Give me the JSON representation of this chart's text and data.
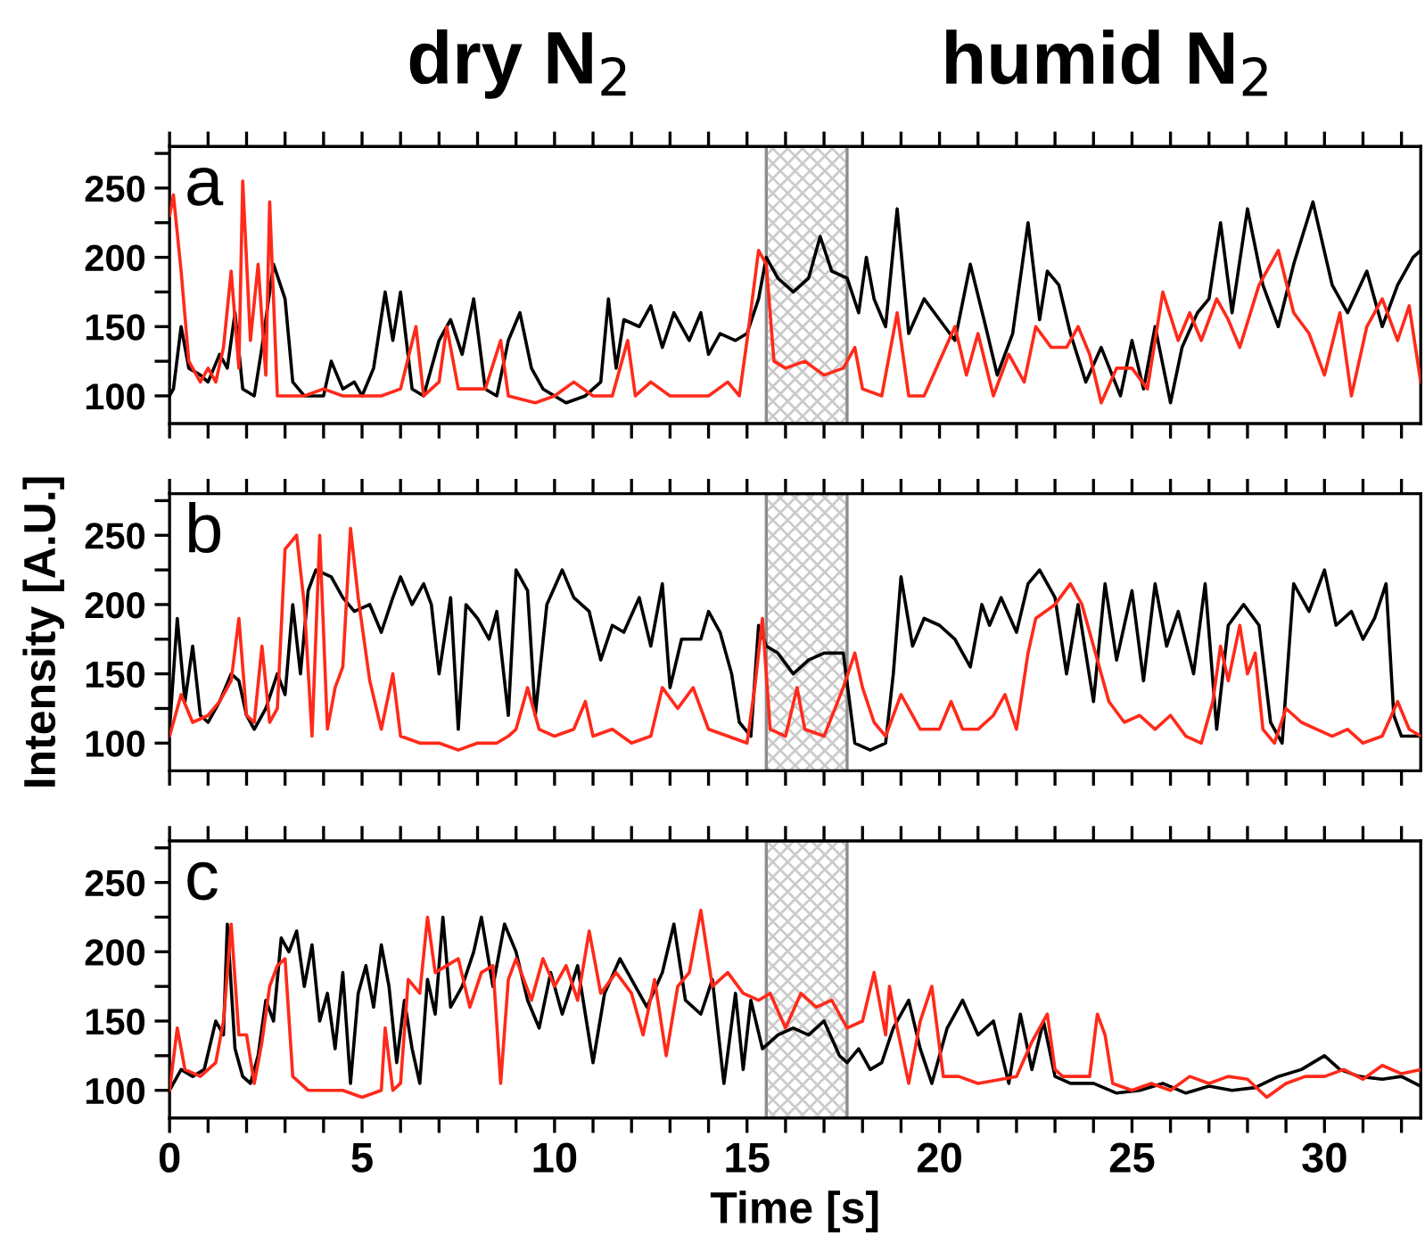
{
  "chart_data": [
    {
      "type": "line",
      "annotations": [
        "a",
        "dry N$_{2}$",
        "humid N$_{2}$"
      ],
      "tick_labels": "y",
      "xlim": [
        0,
        32.5
      ],
      "ylim": [
        80,
        280
      ],
      "xticks": [
        {
          "value": 0,
          "label": null
        },
        {
          "value": 1,
          "label": null
        },
        {
          "value": 2,
          "label": null
        },
        {
          "value": 3,
          "label": null
        },
        {
          "value": 4,
          "label": null
        },
        {
          "value": 5,
          "label": null
        },
        {
          "value": 6,
          "label": null
        },
        {
          "value": 7,
          "label": null
        },
        {
          "value": 8,
          "label": null
        },
        {
          "value": 9,
          "label": null
        },
        {
          "value": 10,
          "label": null
        },
        {
          "value": 11,
          "label": null
        },
        {
          "value": 12,
          "label": null
        },
        {
          "value": 13,
          "label": null
        },
        {
          "value": 14,
          "label": null
        },
        {
          "value": 15,
          "label": null
        },
        {
          "value": 16,
          "label": null
        },
        {
          "value": 17,
          "label": null
        },
        {
          "value": 18,
          "label": null
        },
        {
          "value": 19,
          "label": null
        },
        {
          "value": 20,
          "label": null
        },
        {
          "value": 21,
          "label": null
        },
        {
          "value": 22,
          "label": null
        },
        {
          "value": 23,
          "label": null
        },
        {
          "value": 24,
          "label": null
        },
        {
          "value": 25,
          "label": null
        },
        {
          "value": 26,
          "label": null
        },
        {
          "value": 27,
          "label": null
        },
        {
          "value": 28,
          "label": null
        },
        {
          "value": 29,
          "label": null
        },
        {
          "value": 30,
          "label": null
        },
        {
          "value": 31,
          "label": null
        },
        {
          "value": 32,
          "label": null
        }
      ],
      "yticks": [
        100,
        {
          "value": 125,
          "label": null
        },
        150,
        {
          "value": 175,
          "label": null
        },
        200,
        {
          "value": 225,
          "label": null
        },
        250,
        {
          "value": 275,
          "label": null
        }
      ],
      "bands": [
        {
          "axis": "x",
          "from": 15.5,
          "to": 17.6,
          "color": "#000000"
        }
      ],
      "series": [
        {
          "color": "#000000",
          "x": [
            0,
            0.1,
            0.3,
            0.5,
            0.8,
            1.0,
            1.3,
            1.5,
            1.7,
            1.9,
            2.2,
            2.4,
            2.7,
            3.0,
            3.2,
            3.5,
            4.0,
            4.2,
            4.5,
            4.8,
            5.0,
            5.3,
            5.6,
            5.8,
            6.0,
            6.3,
            6.6,
            7.0,
            7.3,
            7.6,
            7.9,
            8.2,
            8.5,
            8.8,
            9.1,
            9.4,
            9.7,
            10.0,
            10.3,
            10.8,
            11.2,
            11.4,
            11.6,
            11.8,
            12.2,
            12.5,
            12.8,
            13.1,
            13.5,
            13.8,
            14.0,
            14.3,
            14.7,
            15.0,
            15.3,
            15.5,
            15.8,
            16.2,
            16.6,
            16.9,
            17.2,
            17.6,
            17.9,
            18.1,
            18.3,
            18.6,
            18.9,
            19.2,
            19.6,
            20.0,
            20.4,
            20.8,
            21.2,
            21.5,
            21.9,
            22.3,
            22.6,
            22.8,
            23.1,
            23.4,
            23.8,
            24.2,
            24.7,
            25.0,
            25.3,
            25.6,
            26.0,
            26.3,
            26.7,
            27.0,
            27.3,
            27.6,
            28.0,
            28.4,
            28.8,
            29.2,
            29.7,
            30.2,
            30.6,
            31.1,
            31.5,
            31.9,
            32.3,
            32.5
          ],
          "values": [
            100,
            105,
            150,
            120,
            115,
            110,
            130,
            120,
            160,
            105,
            100,
            135,
            195,
            170,
            110,
            100,
            100,
            125,
            105,
            110,
            100,
            120,
            175,
            140,
            175,
            105,
            100,
            140,
            155,
            130,
            170,
            105,
            100,
            140,
            160,
            120,
            105,
            100,
            95,
            100,
            110,
            170,
            120,
            155,
            150,
            165,
            135,
            160,
            140,
            160,
            130,
            145,
            140,
            145,
            170,
            200,
            185,
            175,
            185,
            215,
            190,
            185,
            160,
            200,
            170,
            150,
            235,
            145,
            170,
            155,
            140,
            195,
            150,
            115,
            145,
            225,
            155,
            190,
            180,
            145,
            110,
            135,
            100,
            140,
            105,
            150,
            95,
            135,
            160,
            170,
            225,
            160,
            235,
            180,
            150,
            195,
            240,
            180,
            160,
            190,
            150,
            180,
            200,
            205
          ]
        },
        {
          "color": "#ff2a1a",
          "x": [
            0,
            0.1,
            0.3,
            0.5,
            0.8,
            1.0,
            1.2,
            1.4,
            1.6,
            1.8,
            1.9,
            2.1,
            2.3,
            2.5,
            2.6,
            2.8,
            3.5,
            4.0,
            4.5,
            5.5,
            6.0,
            6.4,
            6.6,
            7.0,
            7.2,
            7.5,
            8.2,
            8.6,
            8.8,
            9.5,
            10.0,
            10.5,
            11.0,
            11.5,
            11.9,
            12.1,
            12.5,
            13.0,
            14.0,
            14.5,
            14.8,
            15.0,
            15.3,
            15.5,
            15.7,
            16.0,
            16.5,
            17.0,
            17.5,
            17.8,
            18.0,
            18.5,
            18.9,
            19.2,
            19.6,
            20.0,
            20.4,
            20.7,
            21.0,
            21.4,
            21.8,
            22.2,
            22.5,
            22.9,
            23.3,
            23.6,
            23.9,
            24.2,
            24.6,
            25.0,
            25.4,
            25.8,
            26.2,
            26.5,
            26.8,
            27.2,
            27.5,
            27.8,
            28.3,
            28.8,
            29.2,
            29.6,
            30.0,
            30.4,
            30.7,
            31.1,
            31.5,
            31.9,
            32.2,
            32.5
          ],
          "values": [
            230,
            245,
            190,
            125,
            110,
            120,
            110,
            135,
            190,
            120,
            255,
            140,
            195,
            115,
            240,
            100,
            100,
            105,
            100,
            100,
            105,
            150,
            100,
            110,
            150,
            105,
            105,
            140,
            100,
            95,
            100,
            110,
            100,
            100,
            140,
            100,
            110,
            100,
            100,
            110,
            100,
            140,
            205,
            195,
            125,
            120,
            125,
            115,
            120,
            135,
            105,
            100,
            160,
            100,
            100,
            125,
            150,
            115,
            145,
            100,
            130,
            110,
            150,
            135,
            135,
            150,
            130,
            95,
            120,
            120,
            105,
            175,
            140,
            160,
            140,
            170,
            155,
            135,
            180,
            205,
            160,
            145,
            115,
            160,
            100,
            150,
            170,
            140,
            165,
            110
          ]
        }
      ]
    },
    {
      "type": "line",
      "annotations": [
        "b"
      ],
      "ylabel": "Intensity [A.U.]",
      "tick_labels": "y",
      "xlim": [
        0,
        32.5
      ],
      "ylim": [
        80,
        280
      ],
      "xticks": [
        {
          "value": 0,
          "label": null
        },
        {
          "value": 1,
          "label": null
        },
        {
          "value": 2,
          "label": null
        },
        {
          "value": 3,
          "label": null
        },
        {
          "value": 4,
          "label": null
        },
        {
          "value": 5,
          "label": null
        },
        {
          "value": 6,
          "label": null
        },
        {
          "value": 7,
          "label": null
        },
        {
          "value": 8,
          "label": null
        },
        {
          "value": 9,
          "label": null
        },
        {
          "value": 10,
          "label": null
        },
        {
          "value": 11,
          "label": null
        },
        {
          "value": 12,
          "label": null
        },
        {
          "value": 13,
          "label": null
        },
        {
          "value": 14,
          "label": null
        },
        {
          "value": 15,
          "label": null
        },
        {
          "value": 16,
          "label": null
        },
        {
          "value": 17,
          "label": null
        },
        {
          "value": 18,
          "label": null
        },
        {
          "value": 19,
          "label": null
        },
        {
          "value": 20,
          "label": null
        },
        {
          "value": 21,
          "label": null
        },
        {
          "value": 22,
          "label": null
        },
        {
          "value": 23,
          "label": null
        },
        {
          "value": 24,
          "label": null
        },
        {
          "value": 25,
          "label": null
        },
        {
          "value": 26,
          "label": null
        },
        {
          "value": 27,
          "label": null
        },
        {
          "value": 28,
          "label": null
        },
        {
          "value": 29,
          "label": null
        },
        {
          "value": 30,
          "label": null
        },
        {
          "value": 31,
          "label": null
        },
        {
          "value": 32,
          "label": null
        }
      ],
      "yticks": [
        100,
        {
          "value": 125,
          "label": null
        },
        150,
        {
          "value": 175,
          "label": null
        },
        200,
        {
          "value": 225,
          "label": null
        },
        250,
        {
          "value": 275,
          "label": null
        }
      ],
      "bands": [
        {
          "axis": "x",
          "from": 15.5,
          "to": 17.6,
          "color": "#000000"
        }
      ],
      "series": [
        {
          "color": "#000000",
          "x": [
            0,
            0.2,
            0.4,
            0.6,
            0.8,
            1.0,
            1.3,
            1.6,
            1.8,
            2.0,
            2.2,
            2.5,
            2.8,
            3.0,
            3.2,
            3.4,
            3.6,
            3.8,
            4.2,
            4.5,
            4.8,
            5.2,
            5.5,
            5.8,
            6.0,
            6.3,
            6.6,
            6.8,
            7.0,
            7.3,
            7.5,
            7.7,
            8.0,
            8.3,
            8.5,
            8.8,
            9.0,
            9.3,
            9.5,
            9.8,
            10.2,
            10.5,
            10.9,
            11.2,
            11.5,
            11.8,
            12.2,
            12.5,
            12.8,
            13.0,
            13.3,
            13.8,
            14.0,
            14.3,
            14.6,
            14.8,
            15.1,
            15.3,
            15.5,
            15.8,
            16.2,
            16.6,
            17.0,
            17.5,
            17.8,
            18.2,
            18.6,
            18.8,
            19.0,
            19.3,
            19.6,
            20.0,
            20.4,
            20.8,
            21.1,
            21.3,
            21.6,
            22.0,
            22.3,
            22.6,
            23.0,
            23.3,
            23.6,
            24.0,
            24.3,
            24.6,
            25.0,
            25.3,
            25.6,
            25.9,
            26.2,
            26.6,
            26.9,
            27.2,
            27.5,
            27.9,
            28.3,
            28.6,
            28.9,
            29.2,
            29.6,
            30.0,
            30.3,
            30.7,
            31.0,
            31.3,
            31.6,
            31.8,
            32.0,
            32.5
          ],
          "values": [
            110,
            190,
            130,
            170,
            120,
            115,
            130,
            150,
            145,
            120,
            110,
            125,
            150,
            135,
            200,
            150,
            210,
            225,
            220,
            205,
            195,
            200,
            180,
            205,
            220,
            200,
            215,
            200,
            150,
            205,
            110,
            200,
            190,
            175,
            195,
            120,
            225,
            210,
            120,
            200,
            225,
            205,
            195,
            160,
            185,
            180,
            205,
            170,
            215,
            140,
            175,
            175,
            195,
            180,
            150,
            115,
            105,
            185,
            170,
            165,
            150,
            160,
            165,
            165,
            100,
            95,
            100,
            150,
            220,
            170,
            190,
            185,
            175,
            155,
            200,
            185,
            205,
            180,
            215,
            225,
            205,
            150,
            200,
            130,
            215,
            160,
            210,
            145,
            215,
            170,
            195,
            150,
            215,
            110,
            185,
            200,
            185,
            115,
            100,
            215,
            195,
            225,
            185,
            195,
            175,
            190,
            215,
            120,
            105,
            105
          ]
        },
        {
          "color": "#ff2a1a",
          "x": [
            0,
            0.3,
            0.6,
            1.0,
            1.3,
            1.6,
            1.8,
            2.0,
            2.2,
            2.4,
            2.6,
            2.8,
            3.0,
            3.3,
            3.5,
            3.7,
            3.9,
            4.1,
            4.3,
            4.5,
            4.7,
            4.9,
            5.2,
            5.5,
            5.8,
            6.0,
            6.5,
            7.0,
            7.5,
            8.0,
            8.5,
            8.8,
            9.0,
            9.3,
            9.6,
            10.0,
            10.5,
            10.8,
            11.0,
            11.5,
            12.0,
            12.5,
            12.8,
            13.2,
            13.6,
            14.0,
            14.5,
            15.0,
            15.2,
            15.4,
            15.6,
            16.0,
            16.3,
            16.5,
            17.0,
            17.5,
            17.8,
            18.0,
            18.3,
            18.6,
            19.0,
            19.5,
            20.0,
            20.3,
            20.6,
            21.0,
            21.4,
            21.7,
            22.0,
            22.3,
            22.5,
            23.0,
            23.4,
            23.7,
            24.0,
            24.4,
            24.8,
            25.2,
            25.6,
            26.0,
            26.4,
            26.8,
            27.1,
            27.3,
            27.5,
            27.8,
            28.0,
            28.2,
            28.4,
            28.7,
            29.0,
            29.4,
            29.8,
            30.2,
            30.6,
            31.0,
            31.5,
            31.9,
            32.2,
            32.5
          ],
          "values": [
            105,
            135,
            115,
            120,
            130,
            145,
            190,
            120,
            115,
            170,
            115,
            125,
            240,
            250,
            200,
            105,
            250,
            110,
            140,
            155,
            255,
            205,
            145,
            110,
            150,
            105,
            100,
            100,
            95,
            100,
            100,
            105,
            110,
            140,
            110,
            105,
            110,
            130,
            105,
            110,
            100,
            105,
            140,
            125,
            140,
            110,
            105,
            100,
            140,
            190,
            110,
            105,
            140,
            110,
            105,
            140,
            165,
            140,
            115,
            105,
            135,
            110,
            110,
            130,
            110,
            110,
            120,
            135,
            110,
            165,
            190,
            200,
            215,
            200,
            170,
            130,
            115,
            120,
            110,
            120,
            105,
            100,
            130,
            170,
            145,
            185,
            150,
            165,
            110,
            100,
            125,
            115,
            110,
            105,
            110,
            100,
            105,
            130,
            110,
            105
          ]
        }
      ]
    },
    {
      "type": "line",
      "annotations": [
        "c"
      ],
      "xlabel": "Time [s]",
      "xlim": [
        0,
        32.5
      ],
      "ylim": [
        80,
        280
      ],
      "xticks": [
        0,
        {
          "value": 1,
          "label": null
        },
        {
          "value": 2,
          "label": null
        },
        {
          "value": 3,
          "label": null
        },
        {
          "value": 4,
          "label": null
        },
        5,
        {
          "value": 6,
          "label": null
        },
        {
          "value": 7,
          "label": null
        },
        {
          "value": 8,
          "label": null
        },
        {
          "value": 9,
          "label": null
        },
        10,
        {
          "value": 11,
          "label": null
        },
        {
          "value": 12,
          "label": null
        },
        {
          "value": 13,
          "label": null
        },
        {
          "value": 14,
          "label": null
        },
        15,
        {
          "value": 16,
          "label": null
        },
        {
          "value": 17,
          "label": null
        },
        {
          "value": 18,
          "label": null
        },
        {
          "value": 19,
          "label": null
        },
        20,
        {
          "value": 21,
          "label": null
        },
        {
          "value": 22,
          "label": null
        },
        {
          "value": 23,
          "label": null
        },
        {
          "value": 24,
          "label": null
        },
        25,
        {
          "value": 26,
          "label": null
        },
        {
          "value": 27,
          "label": null
        },
        {
          "value": 28,
          "label": null
        },
        {
          "value": 29,
          "label": null
        },
        30,
        {
          "value": 31,
          "label": null
        },
        {
          "value": 32,
          "label": null
        }
      ],
      "yticks": [
        100,
        {
          "value": 125,
          "label": null
        },
        150,
        {
          "value": 175,
          "label": null
        },
        200,
        {
          "value": 225,
          "label": null
        },
        250,
        {
          "value": 275,
          "label": null
        }
      ],
      "bands": [
        {
          "axis": "x",
          "from": 15.5,
          "to": 17.6,
          "color": "#000000"
        }
      ],
      "series": [
        {
          "color": "#000000",
          "x": [
            0,
            0.3,
            0.6,
            0.9,
            1.2,
            1.4,
            1.5,
            1.7,
            1.9,
            2.1,
            2.3,
            2.5,
            2.7,
            2.9,
            3.1,
            3.3,
            3.5,
            3.7,
            3.9,
            4.1,
            4.3,
            4.5,
            4.7,
            4.9,
            5.1,
            5.3,
            5.5,
            5.7,
            5.9,
            6.1,
            6.3,
            6.5,
            6.7,
            6.9,
            7.1,
            7.3,
            7.6,
            7.9,
            8.1,
            8.4,
            8.7,
            9.0,
            9.3,
            9.6,
            9.9,
            10.2,
            10.6,
            11.0,
            11.3,
            11.7,
            12.0,
            12.4,
            12.8,
            13.1,
            13.4,
            13.8,
            14.1,
            14.4,
            14.7,
            14.9,
            15.1,
            15.4,
            15.8,
            16.2,
            16.6,
            17.0,
            17.4,
            17.6,
            17.9,
            18.2,
            18.5,
            18.8,
            19.2,
            19.5,
            19.8,
            20.2,
            20.6,
            21.0,
            21.4,
            21.8,
            22.1,
            22.4,
            22.7,
            23.0,
            23.4,
            24.0,
            24.6,
            25.2,
            25.8,
            26.4,
            27.0,
            27.6,
            28.2,
            28.8,
            29.4,
            30.0,
            30.4,
            30.9,
            31.5,
            32.0,
            32.5
          ],
          "values": [
            100,
            115,
            110,
            115,
            150,
            140,
            220,
            130,
            110,
            105,
            125,
            165,
            150,
            210,
            200,
            215,
            175,
            205,
            150,
            170,
            130,
            185,
            105,
            170,
            190,
            160,
            205,
            175,
            120,
            165,
            130,
            105,
            180,
            155,
            225,
            160,
            175,
            200,
            225,
            175,
            220,
            200,
            165,
            145,
            185,
            155,
            190,
            120,
            170,
            195,
            180,
            160,
            185,
            220,
            165,
            155,
            180,
            105,
            170,
            115,
            165,
            130,
            140,
            145,
            140,
            150,
            125,
            120,
            130,
            115,
            120,
            145,
            165,
            130,
            105,
            145,
            165,
            140,
            150,
            105,
            155,
            115,
            150,
            110,
            105,
            105,
            98,
            100,
            105,
            98,
            103,
            100,
            102,
            110,
            115,
            125,
            115,
            110,
            108,
            110,
            103
          ]
        },
        {
          "color": "#ff2a1a",
          "x": [
            0,
            0.2,
            0.4,
            0.8,
            1.2,
            1.4,
            1.6,
            1.8,
            2.0,
            2.2,
            2.4,
            2.6,
            2.8,
            3.0,
            3.2,
            3.6,
            4.0,
            4.5,
            5.0,
            5.5,
            5.6,
            5.8,
            6.0,
            6.2,
            6.5,
            6.7,
            6.9,
            7.2,
            7.5,
            7.8,
            8.1,
            8.4,
            8.6,
            8.8,
            9.0,
            9.4,
            9.7,
            10.0,
            10.3,
            10.6,
            10.9,
            11.2,
            11.6,
            12.0,
            12.3,
            12.6,
            12.9,
            13.2,
            13.5,
            13.8,
            14.1,
            14.5,
            14.9,
            15.3,
            15.6,
            16.0,
            16.4,
            16.8,
            17.2,
            17.6,
            18.0,
            18.3,
            18.6,
            18.7,
            18.9,
            19.2,
            19.5,
            19.8,
            20.1,
            20.5,
            21.0,
            22.0,
            22.4,
            22.8,
            23.0,
            23.2,
            23.9,
            24.1,
            24.3,
            24.5,
            25.0,
            25.5,
            26.0,
            26.5,
            27.0,
            27.5,
            28.0,
            28.5,
            29.0,
            29.5,
            30.0,
            30.5,
            31.0,
            31.5,
            32.0,
            32.5
          ],
          "values": [
            100,
            145,
            115,
            110,
            120,
            150,
            220,
            140,
            140,
            105,
            135,
            175,
            190,
            195,
            110,
            100,
            100,
            100,
            95,
            100,
            145,
            100,
            105,
            180,
            170,
            225,
            185,
            190,
            195,
            160,
            185,
            190,
            105,
            180,
            195,
            165,
            195,
            175,
            190,
            165,
            215,
            170,
            185,
            170,
            140,
            180,
            125,
            175,
            185,
            230,
            175,
            185,
            170,
            165,
            170,
            145,
            170,
            160,
            165,
            145,
            150,
            185,
            140,
            175,
            145,
            105,
            150,
            175,
            110,
            110,
            105,
            110,
            135,
            155,
            115,
            110,
            110,
            155,
            140,
            105,
            100,
            105,
            100,
            110,
            105,
            110,
            108,
            95,
            105,
            110,
            110,
            115,
            108,
            118,
            112,
            115
          ]
        }
      ]
    }
  ]
}
